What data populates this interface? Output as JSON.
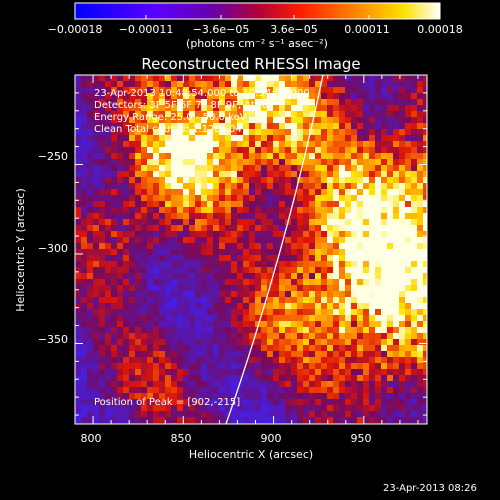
{
  "colorbar": {
    "tick_labels": [
      "−0.00018",
      "−0.00011",
      "−3.6e−05",
      "3.6e−05",
      "0.00011",
      "0.00018"
    ],
    "tick_values": [
      -0.00018,
      -0.00011,
      -3.6e-05,
      3.6e-05,
      0.00011,
      0.00018
    ],
    "units_label": "(photons cm⁻² s⁻¹ asec⁻²)",
    "range": [
      -0.00018,
      0.00018
    ]
  },
  "plot": {
    "title": "Reconstructed RHESSI Image",
    "annotations": [
      "23-Apr-2013 10:48:54.000 to 10:54:54.000",
      "Detectors: 3F 5F 6F 7F 8F 9F, Att 0",
      "Energy Range: 25.0 - 50.0 keV",
      "Clean      Total counts: 1.12E+04"
    ],
    "peak_label": "Position of Peak = [902,-215]",
    "footer": "23-Apr-2013 08:26"
  },
  "chart_data": {
    "type": "heatmap",
    "title": "Reconstructed RHESSI Image",
    "xlabel": "Heliocentric X (arcsec)",
    "ylabel": "Heliocentric Y (arcsec)",
    "xlim": [
      790,
      985
    ],
    "ylim": [
      -395,
      -200
    ],
    "x_ticks": [
      800,
      850,
      900,
      950
    ],
    "x_tick_labels": [
      "800",
      "850",
      "900",
      "950"
    ],
    "y_ticks": [
      -250,
      -300,
      -350
    ],
    "y_tick_labels": [
      "−250",
      "−300",
      "−350"
    ],
    "color_range": [
      -0.00018,
      0.00018
    ],
    "colormap": "blue-purple-red-yellow-white",
    "peak_position": [
      902,
      -215
    ],
    "limb_color": "#ffffff"
  }
}
